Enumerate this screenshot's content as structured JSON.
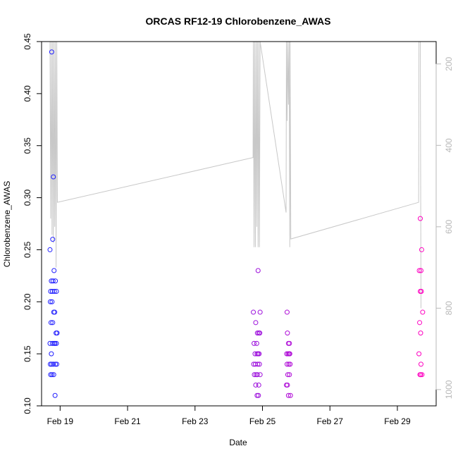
{
  "chart_data": {
    "type": "scatter",
    "title": "ORCAS RF12-19 Chlorobenzene_AWAS",
    "xlabel": "Date",
    "ylabel": "Chlorobenzene_AWAS",
    "x_ticks": [
      "Feb 19",
      "Feb 21",
      "Feb 23",
      "Feb 25",
      "Feb 27",
      "Feb 29"
    ],
    "x_tick_values": [
      19,
      21,
      23,
      25,
      27,
      29
    ],
    "xlim": [
      18.45,
      30.15
    ],
    "ylim": [
      0.1,
      0.45
    ],
    "y_ticks": [
      0.1,
      0.15,
      0.2,
      0.25,
      0.3,
      0.35,
      0.4,
      0.45
    ],
    "y_tick_labels": [
      "0.10",
      "0.15",
      "0.20",
      "0.25",
      "0.30",
      "0.35",
      "0.40",
      "0.45"
    ],
    "right_axis": {
      "ticks": [
        200,
        400,
        600,
        800,
        1000
      ],
      "tick_labels": [
        "200",
        "400",
        "600",
        "800",
        "1000"
      ],
      "ylim_reversed": [
        145,
        1040
      ],
      "color": "#b8b8b8"
    },
    "point_colors": {
      "start": "#2020ff",
      "end": "#ff00c0"
    },
    "series": [
      {
        "points": [
          [
            18.75,
            0.44
          ],
          [
            18.8,
            0.32
          ],
          [
            18.78,
            0.26
          ],
          [
            18.7,
            0.25
          ],
          [
            18.82,
            0.23
          ],
          [
            18.74,
            0.22
          ],
          [
            18.79,
            0.22
          ],
          [
            18.86,
            0.22
          ],
          [
            18.72,
            0.21
          ],
          [
            18.77,
            0.21
          ],
          [
            18.83,
            0.21
          ],
          [
            18.89,
            0.21
          ],
          [
            18.71,
            0.2
          ],
          [
            18.76,
            0.2
          ],
          [
            18.81,
            0.19
          ],
          [
            18.84,
            0.19
          ],
          [
            18.73,
            0.18
          ],
          [
            18.78,
            0.18
          ],
          [
            18.88,
            0.17
          ],
          [
            18.91,
            0.17
          ],
          [
            18.7,
            0.16
          ],
          [
            18.77,
            0.16
          ],
          [
            18.82,
            0.16
          ],
          [
            18.85,
            0.16
          ],
          [
            18.89,
            0.16
          ],
          [
            18.74,
            0.15
          ],
          [
            18.71,
            0.14
          ],
          [
            18.75,
            0.14
          ],
          [
            18.8,
            0.14
          ],
          [
            18.86,
            0.14
          ],
          [
            18.9,
            0.14
          ],
          [
            18.72,
            0.13
          ],
          [
            18.76,
            0.13
          ],
          [
            18.81,
            0.13
          ],
          [
            18.85,
            0.11
          ],
          [
            24.73,
            0.19
          ],
          [
            24.93,
            0.19
          ],
          [
            24.8,
            0.18
          ],
          [
            24.85,
            0.17
          ],
          [
            24.89,
            0.17
          ],
          [
            24.92,
            0.17
          ],
          [
            24.75,
            0.16
          ],
          [
            24.83,
            0.16
          ],
          [
            24.78,
            0.15
          ],
          [
            24.84,
            0.15
          ],
          [
            24.87,
            0.15
          ],
          [
            24.9,
            0.15
          ],
          [
            24.74,
            0.14
          ],
          [
            24.79,
            0.14
          ],
          [
            24.86,
            0.14
          ],
          [
            24.91,
            0.14
          ],
          [
            24.76,
            0.13
          ],
          [
            24.81,
            0.13
          ],
          [
            24.85,
            0.13
          ],
          [
            24.93,
            0.13
          ],
          [
            24.8,
            0.12
          ],
          [
            24.89,
            0.12
          ],
          [
            24.84,
            0.11
          ],
          [
            24.88,
            0.11
          ],
          [
            24.87,
            0.23
          ],
          [
            25.73,
            0.19
          ],
          [
            25.74,
            0.17
          ],
          [
            25.77,
            0.16
          ],
          [
            25.8,
            0.16
          ],
          [
            25.72,
            0.15
          ],
          [
            25.76,
            0.15
          ],
          [
            25.79,
            0.15
          ],
          [
            25.81,
            0.15
          ],
          [
            25.73,
            0.14
          ],
          [
            25.78,
            0.14
          ],
          [
            25.82,
            0.14
          ],
          [
            25.75,
            0.13
          ],
          [
            25.8,
            0.13
          ],
          [
            25.71,
            0.12
          ],
          [
            25.74,
            0.12
          ],
          [
            25.77,
            0.11
          ],
          [
            25.83,
            0.11
          ],
          [
            29.68,
            0.28
          ],
          [
            29.72,
            0.25
          ],
          [
            29.65,
            0.23
          ],
          [
            29.7,
            0.23
          ],
          [
            29.68,
            0.21
          ],
          [
            29.71,
            0.21
          ],
          [
            29.75,
            0.19
          ],
          [
            29.66,
            0.18
          ],
          [
            29.69,
            0.17
          ],
          [
            29.64,
            0.15
          ],
          [
            29.7,
            0.14
          ],
          [
            29.67,
            0.13
          ],
          [
            29.73,
            0.13
          ],
          [
            29.69,
            0.13
          ]
        ]
      },
      {
        "axis": "right",
        "color": "#c8c8c8",
        "style": "line",
        "points": [
          [
            18.7,
            145
          ],
          [
            18.72,
            580
          ],
          [
            18.74,
            145
          ],
          [
            18.76,
            620
          ],
          [
            18.78,
            145
          ],
          [
            18.8,
            640
          ],
          [
            18.82,
            145
          ],
          [
            18.84,
            600
          ],
          [
            18.86,
            145
          ],
          [
            18.88,
            700
          ],
          [
            18.9,
            145
          ],
          [
            18.92,
            540
          ],
          [
            24.72,
            430
          ],
          [
            24.73,
            145
          ],
          [
            24.75,
            650
          ],
          [
            24.77,
            145
          ],
          [
            24.79,
            650
          ],
          [
            24.81,
            145
          ],
          [
            24.83,
            600
          ],
          [
            24.85,
            145
          ],
          [
            24.87,
            650
          ],
          [
            24.89,
            145
          ],
          [
            24.91,
            650
          ],
          [
            24.93,
            145
          ],
          [
            25.7,
            565
          ],
          [
            25.71,
            145
          ],
          [
            25.73,
            340
          ],
          [
            25.75,
            145
          ],
          [
            25.77,
            300
          ],
          [
            25.79,
            145
          ],
          [
            25.81,
            650
          ],
          [
            25.82,
            145
          ],
          [
            25.84,
            630
          ],
          [
            29.63,
            540
          ],
          [
            29.64,
            145
          ],
          [
            29.66,
            145
          ],
          [
            29.68,
            145
          ],
          [
            29.7,
            800
          ]
        ]
      }
    ],
    "grid": false,
    "legend": "none"
  }
}
